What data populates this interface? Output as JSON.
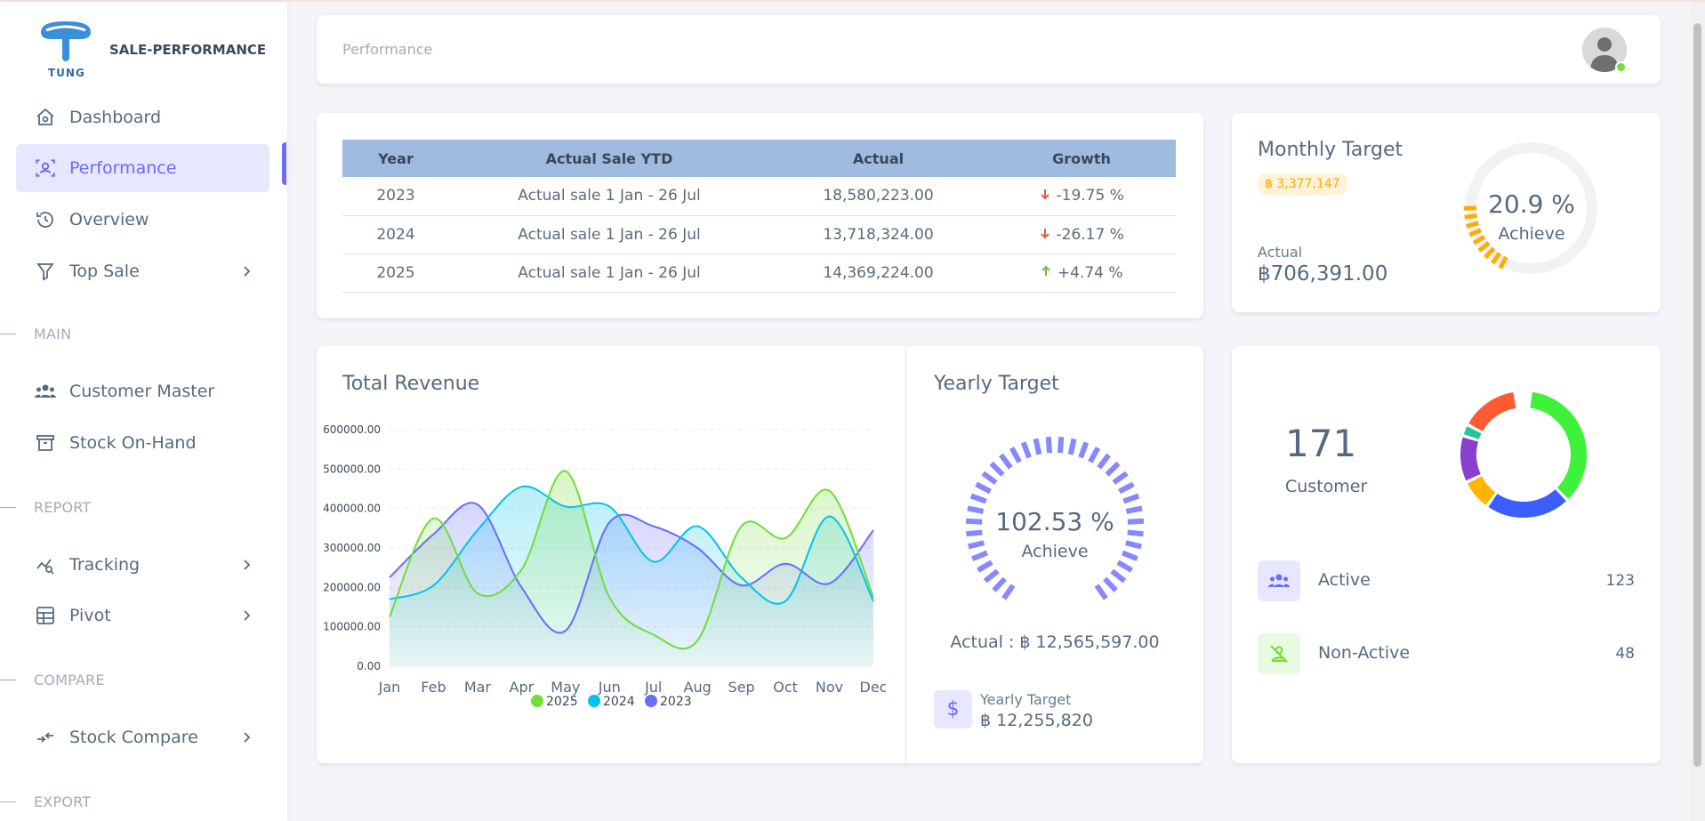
{
  "app": {
    "name": "SALE-PERFORMANCE",
    "logo_text": "TUNG"
  },
  "sidebar": {
    "items": [
      {
        "label": "Dashboard",
        "icon": "home-icon"
      },
      {
        "label": "Performance",
        "icon": "user-scan-icon",
        "active": true
      },
      {
        "label": "Overview",
        "icon": "history-icon"
      },
      {
        "label": "Top Sale",
        "icon": "filter-icon",
        "has_children": true
      }
    ],
    "sections": [
      {
        "header": "MAIN",
        "items": [
          {
            "label": "Customer Master",
            "icon": "users-icon"
          },
          {
            "label": "Stock On-Hand",
            "icon": "archive-icon"
          }
        ]
      },
      {
        "header": "REPORT",
        "items": [
          {
            "label": "Tracking",
            "icon": "chart-search-icon",
            "has_children": true
          },
          {
            "label": "Pivot",
            "icon": "table-icon",
            "has_children": true
          }
        ]
      },
      {
        "header": "COMPARE",
        "items": [
          {
            "label": "Stock Compare",
            "icon": "arrows-merge-icon",
            "has_children": true
          }
        ]
      },
      {
        "header": "EXPORT",
        "items": []
      }
    ]
  },
  "navbar": {
    "breadcrumb": "Performance",
    "status_color": "#71dd37"
  },
  "ytd_table": {
    "headers": [
      "Year",
      "Actual Sale YTD",
      "Actual",
      "Growth"
    ],
    "rows": [
      {
        "year": "2023",
        "period": "Actual sale 1 Jan - 26 Jul",
        "actual": "18,580,223.00",
        "growth": "-19.75 %",
        "trend": "down"
      },
      {
        "year": "2024",
        "period": "Actual sale 1 Jan - 26 Jul",
        "actual": "13,718,324.00",
        "growth": "-26.17 %",
        "trend": "down"
      },
      {
        "year": "2025",
        "period": "Actual sale 1 Jan - 26 Jul",
        "actual": "14,369,224.00",
        "growth": "+4.74 %",
        "trend": "up"
      }
    ]
  },
  "monthly_target": {
    "title": "Monthly Target",
    "target_badge": "฿ 3,377,147",
    "actual_label": "Actual",
    "actual_value": "฿706,391.00",
    "achieve_pct_text": "20.9 %",
    "achieve_label": "Achieve",
    "achieve_fraction": 0.209,
    "color": "#ffab00"
  },
  "total_revenue": {
    "title": "Total Revenue"
  },
  "chart_data": {
    "type": "area",
    "title": "Total Revenue",
    "categories": [
      "Jan",
      "Feb",
      "Mar",
      "Apr",
      "May",
      "Jun",
      "Jul",
      "Aug",
      "Sep",
      "Oct",
      "Nov",
      "Dec"
    ],
    "ylim": [
      0,
      600000
    ],
    "yticks": [
      "0.00",
      "100000.00",
      "200000.00",
      "300000.00",
      "400000.00",
      "500000.00",
      "600000.00"
    ],
    "grid": true,
    "legend": "bottom-center",
    "series": [
      {
        "name": "2025",
        "color": "#71dd37",
        "values": [
          125000,
          375000,
          185000,
          245000,
          495000,
          175000,
          80000,
          65000,
          355000,
          325000,
          445000,
          175000
        ]
      },
      {
        "name": "2024",
        "color": "#03c3ec",
        "values": [
          170000,
          205000,
          345000,
          455000,
          405000,
          405000,
          265000,
          355000,
          225000,
          165000,
          380000,
          165000
        ]
      },
      {
        "name": "2023",
        "color": "#696cff",
        "values": [
          225000,
          335000,
          410000,
          200000,
          90000,
          365000,
          355000,
          300000,
          205000,
          260000,
          210000,
          345000
        ]
      }
    ]
  },
  "yearly_target": {
    "title": "Yearly Target",
    "achieve_pct_text": "102.53 %",
    "achieve_label": "Achieve",
    "achieve_fraction": 1.0,
    "actual_text": "Actual : ฿ 12,565,597.00",
    "target_label": "Yearly Target",
    "target_value": "฿ 12,255,820",
    "icon_text": "$",
    "color": "#8588ff"
  },
  "customers": {
    "count": "171",
    "label": "Customer",
    "rows": [
      {
        "label": "Active",
        "value": "123",
        "icon": "users-icon",
        "bg": "#e7e7ff",
        "fg": "#696cff"
      },
      {
        "label": "Non-Active",
        "value": "48",
        "icon": "user-off-icon",
        "bg": "#e8fadf",
        "fg": "#71dd37"
      }
    ],
    "donut": [
      {
        "value": 0.36,
        "color": "#3ef23b"
      },
      {
        "value": 0.22,
        "color": "#3d5eff"
      },
      {
        "value": 0.08,
        "color": "#ffb400"
      },
      {
        "value": 0.12,
        "color": "#8a3fd1"
      },
      {
        "value": 0.03,
        "color": "#20c997"
      },
      {
        "value": 0.15,
        "color": "#ff5b33"
      }
    ]
  }
}
